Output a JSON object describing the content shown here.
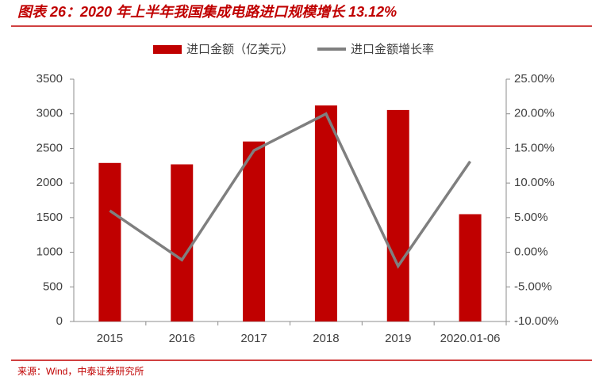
{
  "chart_data": {
    "type": "bar",
    "title": "图表 26：2020 年上半年我国集成电路进口规模增长 13.12%",
    "source": "来源：Wind，中泰证券研究所",
    "categories": [
      "2015",
      "2016",
      "2017",
      "2018",
      "2019",
      "2020.01-06"
    ],
    "series": [
      {
        "name": "进口金额（亿美元）",
        "type": "bar",
        "color": "#c00000",
        "values": [
          2290,
          2270,
          2600,
          3120,
          3055,
          1550
        ]
      },
      {
        "name": "进口金额增长率",
        "type": "line",
        "axis": "y2",
        "color": "#7f7f7f",
        "values": [
          6.0,
          -1.1,
          14.7,
          20.0,
          -2.0,
          13.12
        ]
      }
    ],
    "ylim": [
      0,
      3500
    ],
    "yticks": [
      0,
      500,
      1000,
      1500,
      2000,
      2500,
      3000,
      3500
    ],
    "y2lim": [
      -10,
      25
    ],
    "y2ticks": [
      {
        "value": -10,
        "label": "-10.00%"
      },
      {
        "value": -5,
        "label": "-5.00%"
      },
      {
        "value": 0,
        "label": "0.00%"
      },
      {
        "value": 5,
        "label": "5.00%"
      },
      {
        "value": 10,
        "label": "10.00%"
      },
      {
        "value": 15,
        "label": "15.00%"
      },
      {
        "value": 20,
        "label": "20.00%"
      },
      {
        "value": 25,
        "label": "25.00%"
      }
    ],
    "legend": "top",
    "grid": false
  }
}
